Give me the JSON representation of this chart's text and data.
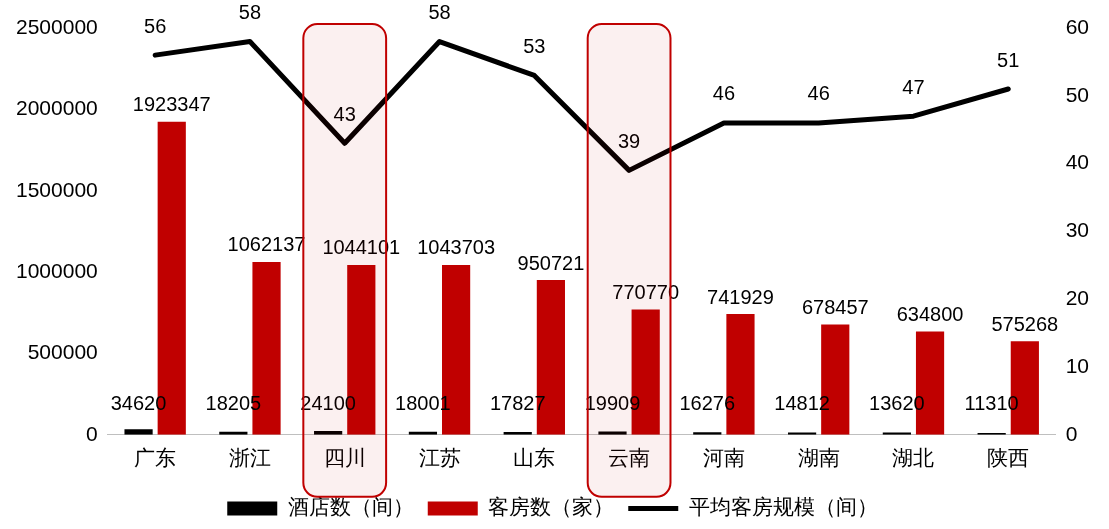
{
  "chart_data": {
    "type": "bar",
    "categories": [
      "广东",
      "浙江",
      "四川",
      "江苏",
      "山东",
      "云南",
      "河南",
      "湖南",
      "湖北",
      "陕西"
    ],
    "series": [
      {
        "name": "酒店数（间）",
        "color": "#000000",
        "values": [
          34620,
          18205,
          24100,
          18001,
          17827,
          19909,
          16276,
          14812,
          13620,
          11310
        ]
      },
      {
        "name": "客房数（家）",
        "color": "#c00000",
        "values": [
          1923347,
          1062137,
          1044101,
          1043703,
          950721,
          770770,
          741929,
          678457,
          634800,
          575268
        ]
      },
      {
        "name": "平均客房规模（间）",
        "type": "line",
        "axis": "y2",
        "color": "#000000",
        "values": [
          56,
          58,
          43,
          58,
          53,
          39,
          46,
          46,
          47,
          51
        ]
      }
    ],
    "ylim": [
      0,
      2500000
    ],
    "yticks": [
      0,
      500000,
      1000000,
      1500000,
      2000000,
      2500000
    ],
    "y2lim": [
      0,
      60
    ],
    "y2ticks": [
      0,
      10,
      20,
      30,
      40,
      50,
      60
    ],
    "bands": [
      {
        "axis": "x",
        "from": "四川",
        "to": "四川",
        "color": "#c00000"
      },
      {
        "axis": "x",
        "from": "云南",
        "to": "云南",
        "color": "#c00000"
      }
    ],
    "data_labels": true,
    "legend": "bottom",
    "grid": false,
    "marker": "none",
    "line_style": "solid"
  }
}
